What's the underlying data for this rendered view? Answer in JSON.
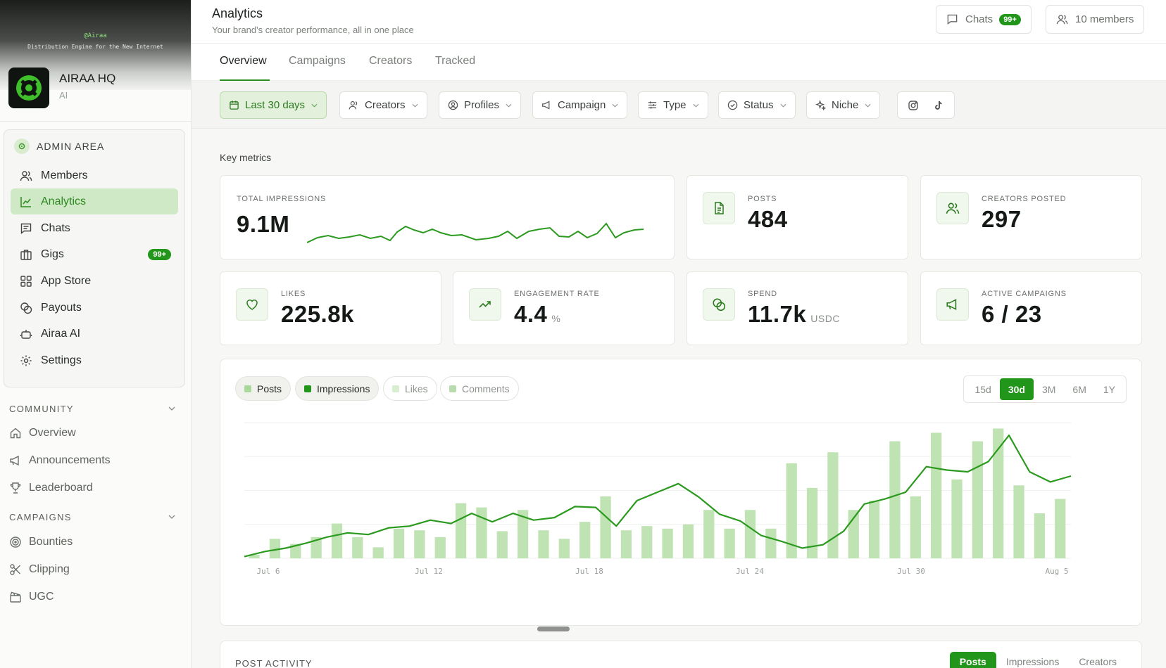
{
  "sidebar": {
    "banner_brand": "@Airaa",
    "banner_tagline": "Distribution Engine for the New Internet",
    "org_name": "AIRAA HQ",
    "org_sub": "AI",
    "admin_label": "ADMIN AREA",
    "admin_items": [
      {
        "label": "Members",
        "icon": "members-icon"
      },
      {
        "label": "Analytics",
        "icon": "analytics-icon",
        "active": true
      },
      {
        "label": "Chats",
        "icon": "chat-icon"
      },
      {
        "label": "Gigs",
        "icon": "briefcase-icon",
        "badge": "99+"
      },
      {
        "label": "App Store",
        "icon": "grid-icon"
      },
      {
        "label": "Payouts",
        "icon": "coins-icon"
      },
      {
        "label": "Airaa AI",
        "icon": "bot-icon"
      },
      {
        "label": "Settings",
        "icon": "gear-icon"
      }
    ],
    "community_label": "COMMUNITY",
    "community_items": [
      {
        "label": "Overview",
        "icon": "home-icon"
      },
      {
        "label": "Announcements",
        "icon": "megaphone-icon"
      },
      {
        "label": "Leaderboard",
        "icon": "trophy-icon"
      }
    ],
    "campaigns_label": "CAMPAIGNS",
    "campaign_items": [
      {
        "label": "Bounties",
        "icon": "target-icon"
      },
      {
        "label": "Clipping",
        "icon": "scissors-icon"
      },
      {
        "label": "UGC",
        "icon": "clapperboard-icon"
      }
    ]
  },
  "header": {
    "title": "Analytics",
    "subtitle": "Your brand's creator performance, all in one place",
    "chats_label": "Chats",
    "chats_badge": "99+",
    "members_label": "10 members"
  },
  "tabs": [
    "Overview",
    "Campaigns",
    "Creators",
    "Tracked"
  ],
  "filters": {
    "date": "Last 30 days",
    "creators": "Creators",
    "profiles": "Profiles",
    "campaign": "Campaign",
    "type": "Type",
    "status": "Status",
    "niche": "Niche"
  },
  "key_metrics_title": "Key metrics",
  "metrics": {
    "impressions": {
      "label": "TOTAL IMPRESSIONS",
      "value": "9.1M"
    },
    "posts": {
      "label": "POSTS",
      "value": "484"
    },
    "creators_posted": {
      "label": "CREATORS POSTED",
      "value": "297"
    },
    "likes": {
      "label": "LIKES",
      "value": "225.8k"
    },
    "engagement": {
      "label": "ENGAGEMENT RATE",
      "value": "4.4",
      "unit": "%"
    },
    "spend": {
      "label": "SPEND",
      "value": "11.7k",
      "unit": "USDC"
    },
    "active_campaigns": {
      "label": "ACTIVE CAMPAIGNS",
      "value": "6 / 23"
    }
  },
  "legend": [
    "Posts",
    "Impressions",
    "Likes",
    "Comments"
  ],
  "ranges": [
    "15d",
    "30d",
    "3M",
    "6M",
    "1Y"
  ],
  "active_range": "30d",
  "colors": {
    "accent": "#22961a",
    "bar": "#bfe3b3",
    "line": "#2b9a1f"
  },
  "chart_data": {
    "type": "bar",
    "x_tick_labels": [
      "Jul 6",
      "Jul 12",
      "Jul 18",
      "Jul 24",
      "Jul 30",
      "Aug 5"
    ],
    "series": [
      {
        "name": "Posts",
        "type": "bar",
        "values": [
          4,
          23,
          17,
          25,
          41,
          25,
          13,
          35,
          33,
          25,
          65,
          60,
          32,
          57,
          33,
          23,
          43,
          73,
          33,
          38,
          35,
          40,
          57,
          35,
          57,
          35,
          112,
          83,
          125,
          57,
          68,
          138,
          73,
          148,
          93,
          138,
          153,
          86,
          53,
          70
        ]
      },
      {
        "name": "Impressions",
        "type": "line",
        "values": [
          2,
          8,
          12,
          18,
          25,
          30,
          28,
          36,
          38,
          45,
          41,
          53,
          43,
          53,
          45,
          48,
          61,
          60,
          38,
          68,
          78,
          88,
          72,
          52,
          44,
          27,
          20,
          12,
          16,
          32,
          64,
          70,
          78,
          108,
          104,
          102,
          114,
          145,
          102,
          90,
          97
        ]
      }
    ]
  },
  "post_activity": {
    "title": "POST ACTIVITY",
    "tabs": [
      "Posts",
      "Impressions",
      "Creators"
    ]
  }
}
